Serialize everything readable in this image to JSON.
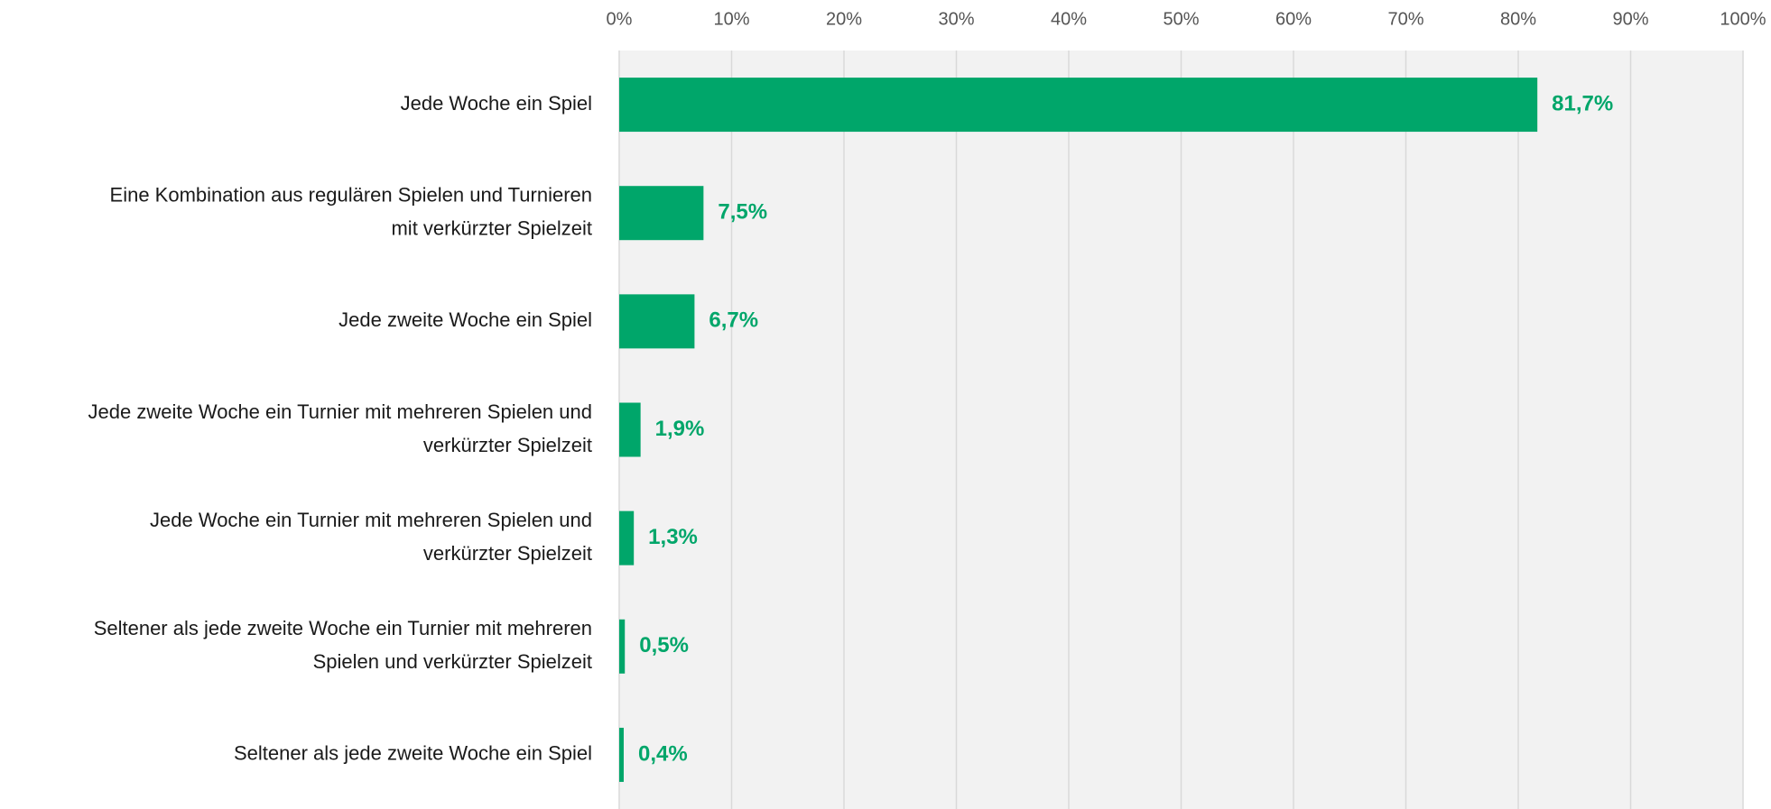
{
  "chart_data": {
    "type": "bar",
    "orientation": "horizontal",
    "categories": [
      [
        "Jede Woche ein Spiel"
      ],
      [
        "Eine Kombination aus regulären Spielen und Turnieren",
        "mit verkürzter Spielzeit"
      ],
      [
        "Jede zweite Woche ein Spiel"
      ],
      [
        "Jede zweite Woche ein Turnier mit mehreren Spielen und",
        "verkürzter Spielzeit"
      ],
      [
        "Jede Woche ein Turnier mit mehreren Spielen und",
        "verkürzter Spielzeit"
      ],
      [
        "Seltener als jede zweite Woche ein Turnier mit mehreren",
        "Spielen und verkürzter Spielzeit"
      ],
      [
        "Seltener als jede zweite Woche ein Spiel"
      ]
    ],
    "values": [
      81.7,
      7.5,
      6.7,
      1.9,
      1.3,
      0.5,
      0.4
    ],
    "value_labels": [
      "81,7%",
      "7,5%",
      "6,7%",
      "1,9%",
      "1,3%",
      "0,5%",
      "0,4%"
    ],
    "color": "#00a66a",
    "xlim": [
      0,
      100
    ],
    "xticks": [
      {
        "value": 0,
        "label": "0%"
      },
      {
        "value": 10,
        "label": "10%"
      },
      {
        "value": 20,
        "label": "20%"
      },
      {
        "value": 30,
        "label": "30%"
      },
      {
        "value": 40,
        "label": "40%"
      },
      {
        "value": 50,
        "label": "50%"
      },
      {
        "value": 60,
        "label": "60%"
      },
      {
        "value": 70,
        "label": "70%"
      },
      {
        "value": 80,
        "label": "80%"
      },
      {
        "value": 90,
        "label": "90%"
      },
      {
        "value": 100,
        "label": "100%"
      }
    ],
    "grid": true
  }
}
